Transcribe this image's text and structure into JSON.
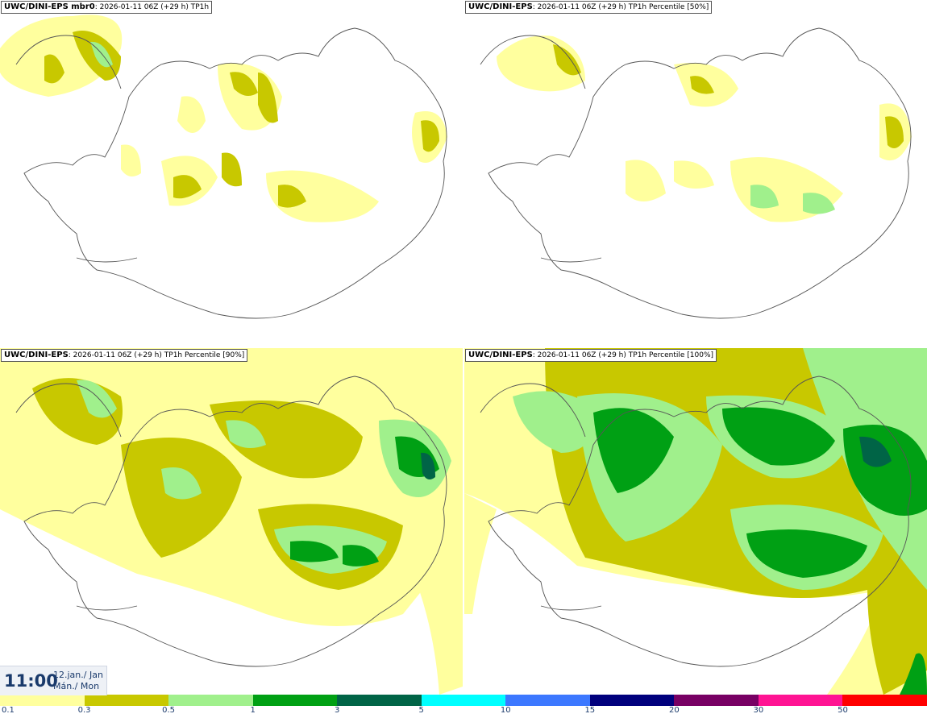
{
  "panels": [
    {
      "model": "UWC/DINI-EPS mbr0",
      "run": "2026-01-11 06Z (+29 h)",
      "field": "TP1h"
    },
    {
      "model": "UWC/DINI-EPS",
      "run": "2026-01-11 06Z (+29 h)",
      "field": "TP1h Percentile [50%]"
    },
    {
      "model": "UWC/DINI-EPS",
      "run": "2026-01-11 06Z (+29 h)",
      "field": "TP1h Percentile [90%]"
    },
    {
      "model": "UWC/DINI-EPS",
      "run": "2026-01-11 06Z (+29 h)",
      "field": "TP1h Percentile [100%]"
    }
  ],
  "valid_time": {
    "time": "11:00",
    "date_line1": "12.jan./ Jan",
    "date_line2": "Mán./ Mon"
  },
  "legend": {
    "colors": [
      "#ffff9e",
      "#c8c800",
      "#a0f08c",
      "#00a014",
      "#006446",
      "#00ffff",
      "#3c78ff",
      "#00007d",
      "#780064",
      "#ff1493",
      "#ff0000"
    ],
    "ticks": [
      "0.1",
      "0.3",
      "0.5",
      "1",
      "3",
      "5",
      "10",
      "15",
      "20",
      "30",
      "50"
    ]
  },
  "colors": {
    "coast": "#555555",
    "background": "#ffffff",
    "label": "#1a3a6b"
  }
}
